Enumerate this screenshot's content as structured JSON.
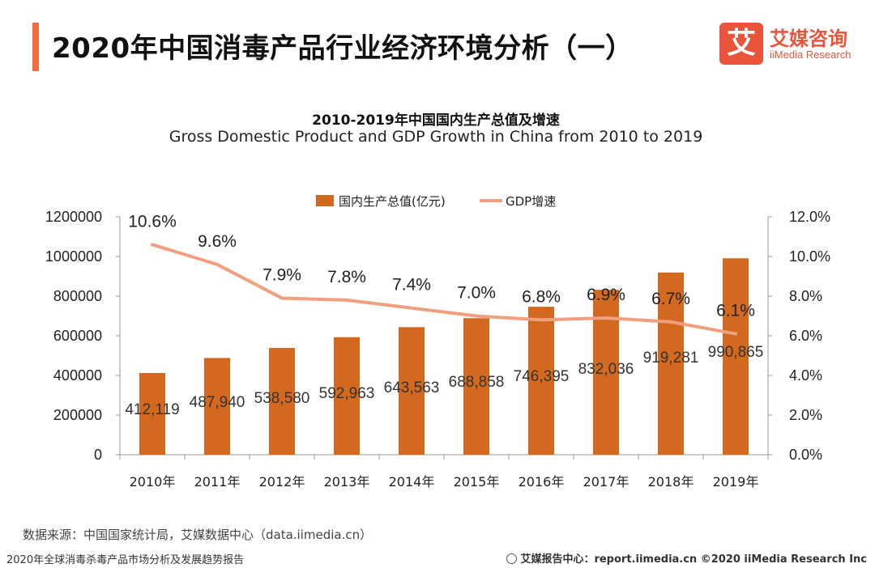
{
  "page": {
    "title": "2020年中国消毒产品行业经济环境分析（一）",
    "accent_color": "#f26b3a"
  },
  "logo": {
    "mark": "艾",
    "name_cn": "艾媒咨询",
    "name_en": "iiMedia Research",
    "color": "#e8553a"
  },
  "source": "数据来源：中国国家统计局，艾媒数据中心（data.iimedia.cn）",
  "footer": {
    "left": "2020年全球消毒杀毒产品市场分析及发展趋势报告",
    "right": "艾媒报告中心：report.iimedia.cn ©2020 iiMedia Research Inc"
  },
  "chart_data": {
    "type": "bar+line",
    "title": "2010-2019年中国国内生产总值及增速",
    "subtitle": "Gross Domestic Product and GDP Growth in China from 2010 to 2019",
    "categories": [
      "2010年",
      "2011年",
      "2012年",
      "2013年",
      "2014年",
      "2015年",
      "2016年",
      "2017年",
      "2018年",
      "2019年"
    ],
    "series": [
      {
        "name": "国内生产总值(亿元)",
        "type": "bar",
        "axis": "left",
        "color": "#d2691e",
        "values": [
          412119,
          487940,
          538580,
          592963,
          643563,
          688858,
          746395,
          832036,
          919281,
          990865
        ],
        "labels": [
          "412,119",
          "487,940",
          "538,580",
          "592,963",
          "643,563",
          "688,858",
          "746,395",
          "832,036",
          "919,281",
          "990,865"
        ]
      },
      {
        "name": "GDP增速",
        "type": "line",
        "axis": "right",
        "color": "#f0a080",
        "values": [
          10.6,
          9.6,
          7.9,
          7.8,
          7.4,
          7.0,
          6.8,
          6.9,
          6.7,
          6.1
        ],
        "labels": [
          "10.6%",
          "9.6%",
          "7.9%",
          "7.8%",
          "7.4%",
          "7.0%",
          "6.8%",
          "6.9%",
          "6.7%",
          "6.1%"
        ]
      }
    ],
    "y_left": {
      "min": 0,
      "max": 1200000,
      "ticks": [
        "0",
        "200000",
        "400000",
        "600000",
        "800000",
        "1000000",
        "1200000"
      ]
    },
    "y_right": {
      "min": 0,
      "max": 12,
      "ticks": [
        "0.0%",
        "2.0%",
        "4.0%",
        "6.0%",
        "8.0%",
        "10.0%",
        "12.0%"
      ]
    },
    "legend_position": "top-center",
    "grid": false
  }
}
